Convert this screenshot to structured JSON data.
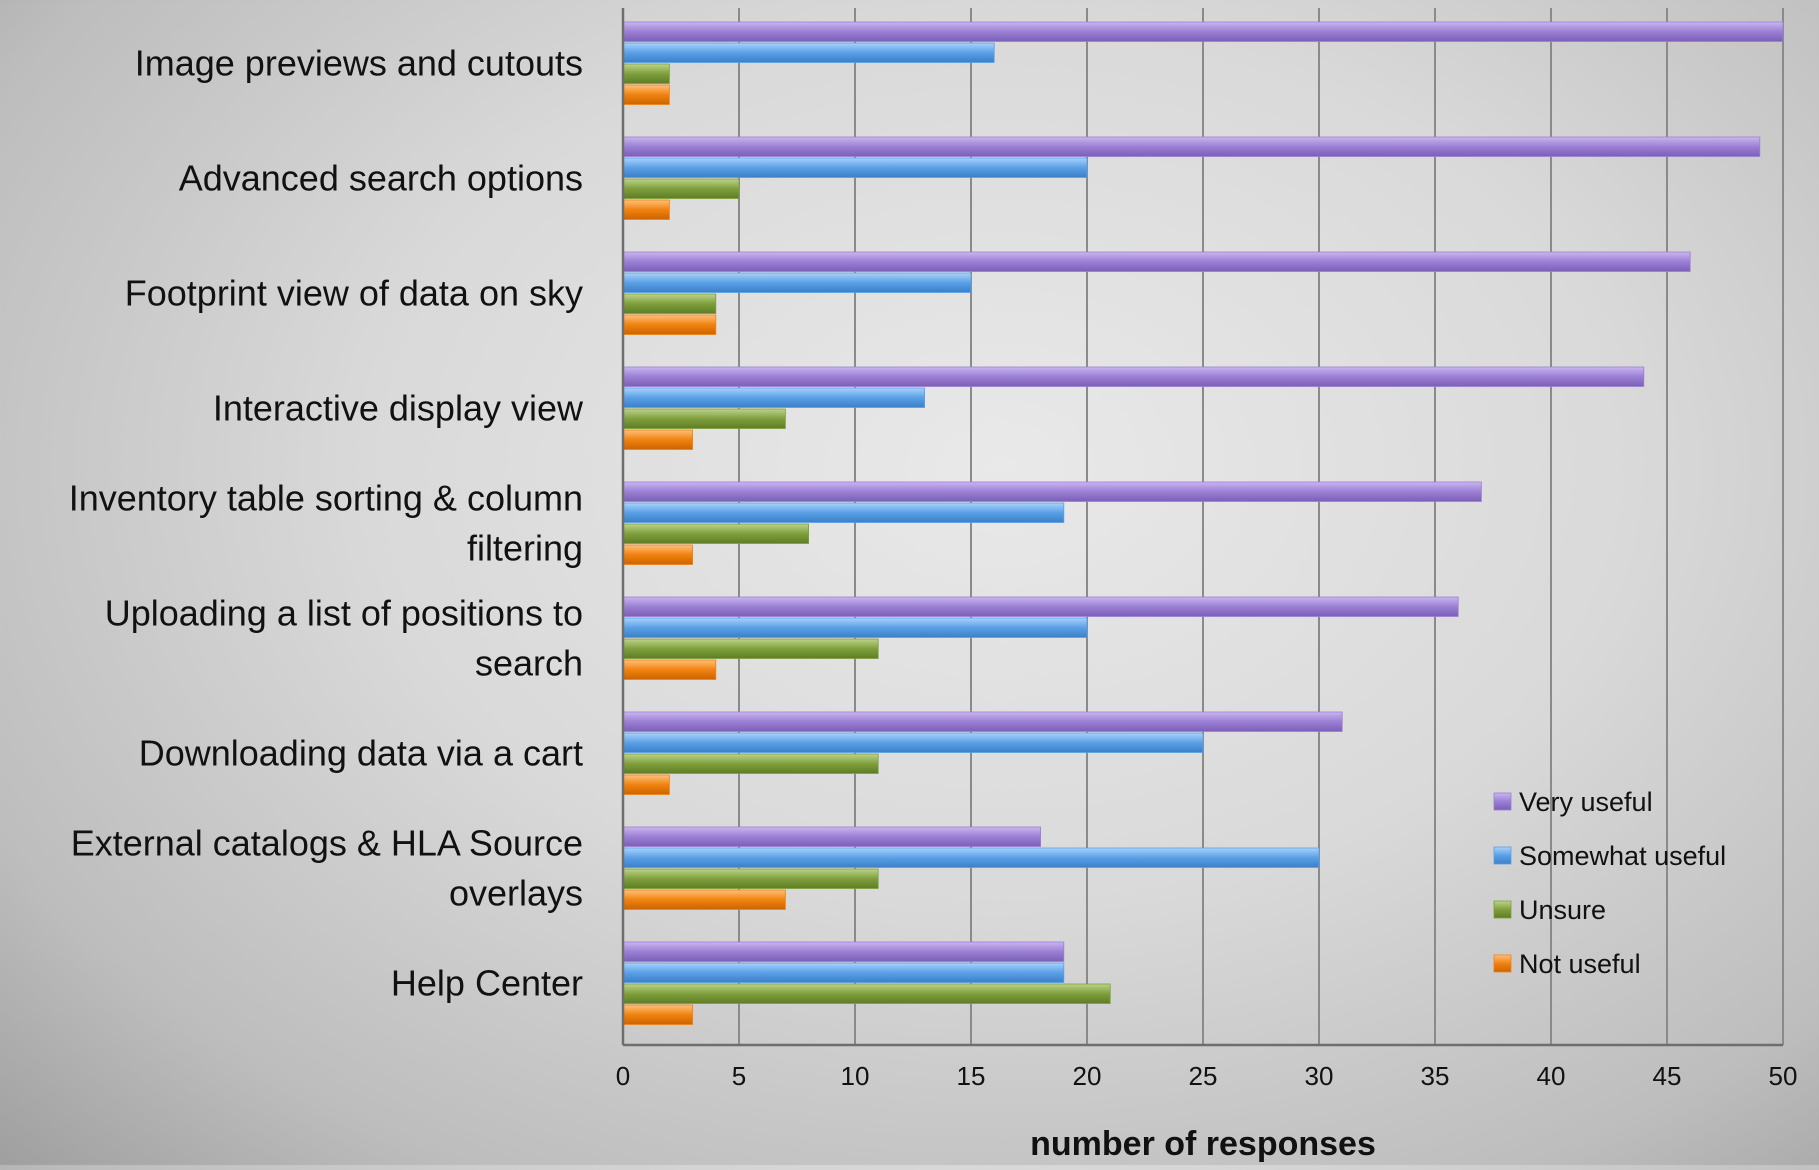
{
  "chart_data": {
    "type": "bar",
    "orientation": "horizontal",
    "categories": [
      [
        "Image previews and cutouts"
      ],
      [
        "Advanced search options"
      ],
      [
        "Footprint view of data on sky"
      ],
      [
        "Interactive display view"
      ],
      [
        "Inventory table sorting & column",
        "filtering"
      ],
      [
        "Uploading a list of positions to",
        "search"
      ],
      [
        "Downloading data via a cart"
      ],
      [
        "External catalogs & HLA Source",
        "overlays"
      ],
      [
        "Help Center"
      ]
    ],
    "series": [
      {
        "name": "Very useful",
        "color": "#9b7fd4",
        "values": [
          50,
          49,
          46,
          44,
          37,
          36,
          31,
          18,
          19
        ]
      },
      {
        "name": "Somewhat useful",
        "color": "#5aa0e6",
        "values": [
          16,
          20,
          15,
          13,
          19,
          20,
          25,
          30,
          19
        ]
      },
      {
        "name": "Unsure",
        "color": "#7f9f3c",
        "values": [
          2,
          5,
          4,
          7,
          8,
          11,
          11,
          11,
          21
        ]
      },
      {
        "name": "Not useful",
        "color": "#f0820f",
        "values": [
          2,
          2,
          4,
          3,
          3,
          4,
          2,
          7,
          3
        ]
      }
    ],
    "xlabel": "number of responses",
    "ylabel": "",
    "xlim": [
      0,
      50
    ],
    "xticks": [
      0,
      5,
      10,
      15,
      20,
      25,
      30,
      35,
      40,
      45,
      50
    ],
    "grid": "vertical",
    "legend_position": "bottom-right"
  }
}
